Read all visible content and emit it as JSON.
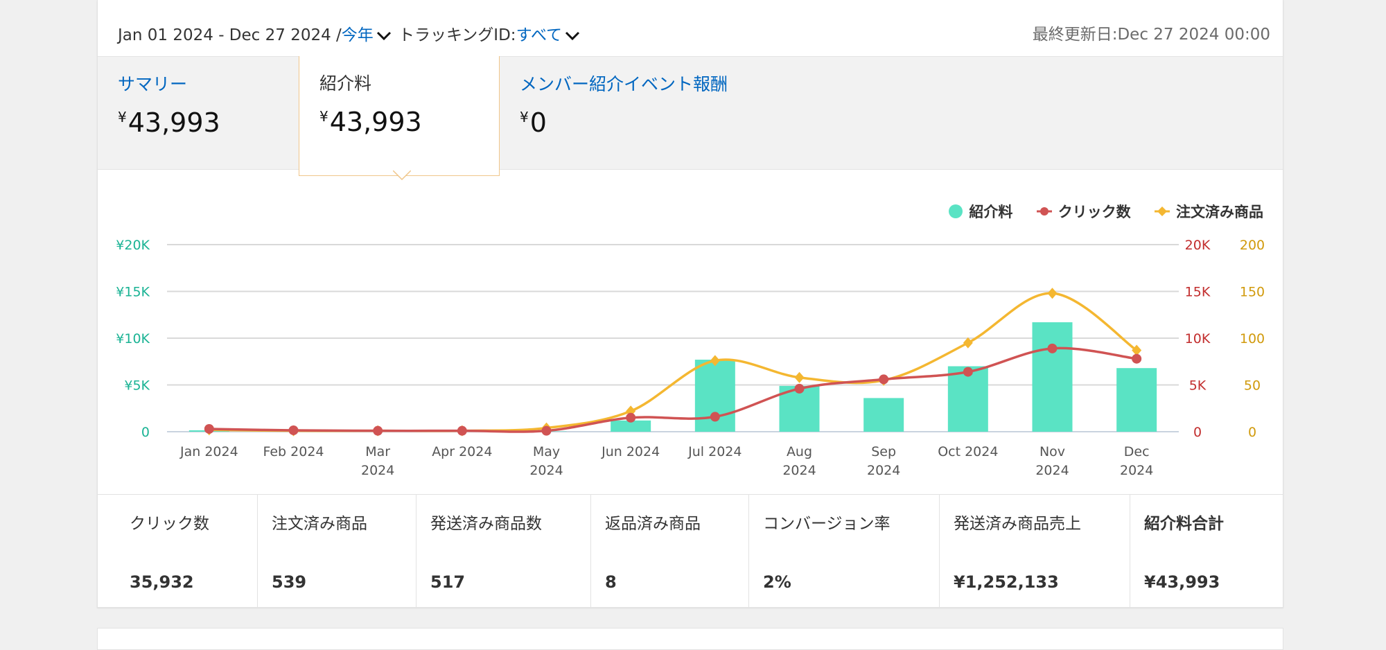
{
  "header": {
    "date_range": "Jan 01 2024 - Dec 27 2024 /",
    "period": "今年",
    "tracking_label": "トラッキングID:",
    "tracking_value": "すべて",
    "last_updated": "最終更新日:Dec 27 2024 00:00"
  },
  "tabs": [
    {
      "title": "サマリー",
      "currency": "¥",
      "value": "43,993"
    },
    {
      "title": "紹介料",
      "currency": "¥",
      "value": "43,993"
    },
    {
      "title": "メンバー紹介イベント報酬",
      "currency": "¥",
      "value": "0"
    }
  ],
  "legend": {
    "fees": "紹介料",
    "clicks": "クリック数",
    "ordered": "注文済み商品"
  },
  "colors": {
    "fees": "#5ae3c4",
    "clicks": "#d05353",
    "ordered": "#f4b731",
    "left_axis": "#1ab394",
    "mid_axis": "#c22e2e",
    "right_axis": "#d19a0c",
    "link": "#0066c0"
  },
  "chart_data": {
    "type": "bar",
    "categories": [
      "Jan 2024",
      "Feb 2024",
      "Mar 2024",
      "Apr 2024",
      "May 2024",
      "Jun 2024",
      "Jul 2024",
      "Aug 2024",
      "Sep 2024",
      "Oct 2024",
      "Nov 2024",
      "Dec 2024"
    ],
    "x_tick_labels": [
      [
        "Jan 2024"
      ],
      [
        "Feb 2024"
      ],
      [
        "Mar",
        "2024"
      ],
      [
        "Apr 2024"
      ],
      [
        "May",
        "2024"
      ],
      [
        "Jun 2024"
      ],
      [
        "Jul 2024"
      ],
      [
        "Aug",
        "2024"
      ],
      [
        "Sep",
        "2024"
      ],
      [
        "Oct 2024"
      ],
      [
        "Nov",
        "2024"
      ],
      [
        "Dec",
        "2024"
      ]
    ],
    "series": [
      {
        "name": "紹介料",
        "type": "bar",
        "axis": "left",
        "values": [
          150,
          40,
          20,
          20,
          30,
          1200,
          7700,
          4900,
          3600,
          7000,
          11700,
          6800
        ]
      },
      {
        "name": "クリック数",
        "type": "line",
        "axis": "mid",
        "values": [
          300,
          150,
          100,
          100,
          100,
          1500,
          1600,
          4600,
          5600,
          6400,
          8900,
          7800
        ]
      },
      {
        "name": "注文済み商品",
        "type": "line",
        "axis": "right",
        "values": [
          2,
          1,
          1,
          1,
          4,
          22,
          76,
          58,
          55,
          95,
          148,
          87
        ]
      }
    ],
    "axes": {
      "left": {
        "ylim": [
          0,
          20000
        ],
        "ticks": [
          "0",
          "¥5K",
          "¥10K",
          "¥15K",
          "¥20K"
        ]
      },
      "mid": {
        "ylim": [
          0,
          20000
        ],
        "ticks": [
          "0",
          "5K",
          "10K",
          "15K",
          "20K"
        ]
      },
      "right": {
        "ylim": [
          0,
          200
        ],
        "ticks": [
          "0",
          "50",
          "100",
          "150",
          "200"
        ]
      }
    },
    "grid": true,
    "legend_position": "top-right"
  },
  "stats": [
    {
      "label": "クリック数",
      "value": "35,932"
    },
    {
      "label": "注文済み商品",
      "value": "539"
    },
    {
      "label": "発送済み商品数",
      "value": "517"
    },
    {
      "label": "返品済み商品",
      "value": "8"
    },
    {
      "label": "コンバージョン率",
      "value": "2%"
    },
    {
      "label": "発送済み商品売上",
      "value": "¥1,252,133"
    },
    {
      "label": "紹介料合計",
      "value": "¥43,993"
    }
  ]
}
